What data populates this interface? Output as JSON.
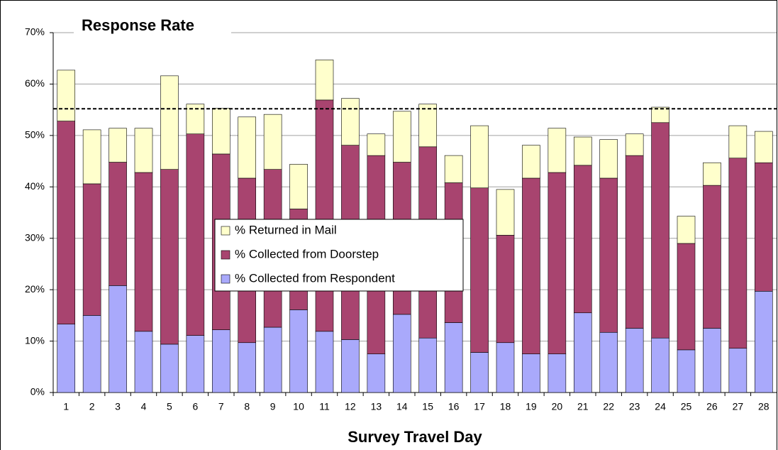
{
  "chart_data": {
    "type": "stacked_bar",
    "title": "Response Rate",
    "x_label": "Survey Travel Day",
    "categories": [
      "1",
      "2",
      "3",
      "4",
      "5",
      "6",
      "7",
      "8",
      "9",
      "10",
      "11",
      "12",
      "13",
      "14",
      "15",
      "16",
      "17",
      "18",
      "19",
      "20",
      "21",
      "22",
      "23",
      "24",
      "25",
      "26",
      "27",
      "28"
    ],
    "series": [
      {
        "name": "% Collected from Respondent",
        "color": "#a9a9fb",
        "values": [
          13.3,
          15.0,
          20.8,
          11.9,
          9.4,
          11.1,
          12.2,
          9.7,
          12.7,
          16.1,
          11.9,
          10.3,
          7.5,
          15.2,
          10.6,
          13.6,
          7.8,
          9.7,
          7.5,
          7.5,
          15.5,
          11.7,
          12.5,
          10.6,
          8.3,
          12.5,
          8.6,
          19.7
        ]
      },
      {
        "name": "% Collected from Doorstep",
        "color": "#a8446f",
        "values": [
          39.5,
          25.6,
          24.0,
          30.9,
          34.0,
          39.2,
          34.2,
          32.0,
          30.7,
          19.6,
          45.0,
          37.8,
          38.6,
          29.6,
          37.2,
          27.2,
          32.0,
          20.9,
          34.2,
          35.3,
          28.7,
          30.0,
          33.6,
          41.9,
          20.7,
          27.8,
          37.0,
          25.0
        ]
      },
      {
        "name": "% Returned in Mail",
        "color": "#ffffcc",
        "values": [
          9.9,
          10.5,
          6.6,
          8.6,
          18.2,
          5.8,
          8.9,
          11.9,
          10.7,
          8.7,
          7.8,
          9.1,
          4.2,
          9.9,
          8.3,
          5.3,
          12.1,
          8.9,
          6.4,
          8.6,
          5.5,
          7.5,
          4.2,
          3.0,
          5.3,
          4.4,
          6.3,
          6.1
        ]
      }
    ],
    "reference_line": 55.2,
    "ylim": [
      0,
      70
    ],
    "yticks": [
      {
        "value": 0,
        "label": "0%"
      },
      {
        "value": 10,
        "label": "10%"
      },
      {
        "value": 20,
        "label": "20%"
      },
      {
        "value": 30,
        "label": "30%"
      },
      {
        "value": 40,
        "label": "40%"
      },
      {
        "value": 50,
        "label": "50%"
      },
      {
        "value": 60,
        "label": "60%"
      },
      {
        "value": 70,
        "label": "70%"
      }
    ],
    "grid": true
  }
}
